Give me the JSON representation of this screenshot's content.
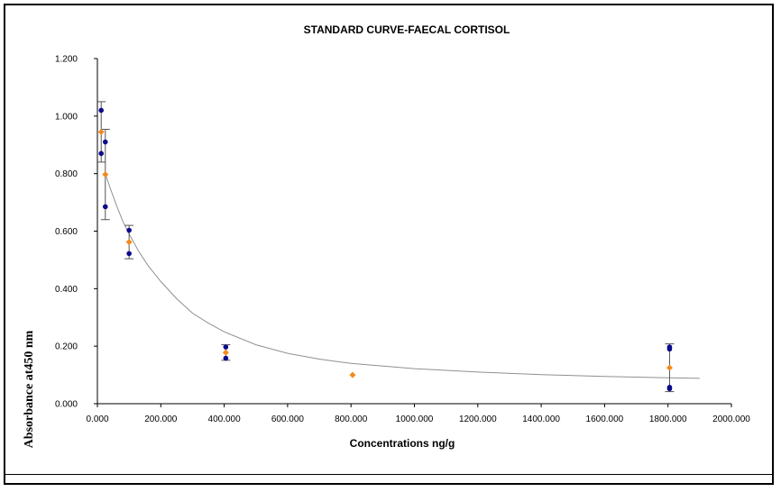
{
  "chart_data": {
    "type": "scatter",
    "title": "STANDARD CURVE-FAECAL CORTISOL",
    "xlabel": "Concentrations ng/g",
    "ylabel": "Absorbance at450 nm",
    "xlim": [
      0,
      2000
    ],
    "ylim": [
      0,
      1.2
    ],
    "x_ticks": [
      "0.000",
      "200.000",
      "400.000",
      "600.000",
      "800.000",
      "1000.000",
      "1200.000",
      "1400.000",
      "1600.000",
      "1800.000",
      "2000.000"
    ],
    "y_ticks": [
      "0.000",
      "0.200",
      "0.400",
      "0.600",
      "0.800",
      "1.000",
      "1.200"
    ],
    "colors": {
      "replicate": "#0a0a8c",
      "mean": "#f28a1c",
      "curve": "#909090",
      "errorbar": "#555555"
    },
    "replicates": [
      {
        "x": 12,
        "y": 1.02
      },
      {
        "x": 12,
        "y": 0.87
      },
      {
        "x": 25,
        "y": 0.91
      },
      {
        "x": 25,
        "y": 0.685
      },
      {
        "x": 100,
        "y": 0.603
      },
      {
        "x": 100,
        "y": 0.522
      },
      {
        "x": 405,
        "y": 0.197
      },
      {
        "x": 405,
        "y": 0.158
      },
      {
        "x": 1805,
        "y": 0.197
      },
      {
        "x": 1805,
        "y": 0.19
      },
      {
        "x": 1805,
        "y": 0.057
      },
      {
        "x": 1805,
        "y": 0.052
      }
    ],
    "means": [
      {
        "x": 12,
        "y": 0.945,
        "err": 0.105
      },
      {
        "x": 25,
        "y": 0.797,
        "err": 0.157
      },
      {
        "x": 100,
        "y": 0.562,
        "err": 0.058
      },
      {
        "x": 405,
        "y": 0.178,
        "err": 0.027
      },
      {
        "x": 805,
        "y": 0.1,
        "err": 0.0
      },
      {
        "x": 1805,
        "y": 0.125,
        "err": 0.083
      }
    ],
    "fit_curve": {
      "x": [
        25,
        40,
        60,
        80,
        100,
        130,
        160,
        200,
        250,
        300,
        350,
        400,
        500,
        600,
        700,
        800,
        1000,
        1200,
        1400,
        1600,
        1800,
        1900
      ],
      "y": [
        0.8,
        0.75,
        0.69,
        0.635,
        0.59,
        0.53,
        0.48,
        0.425,
        0.365,
        0.315,
        0.28,
        0.25,
        0.205,
        0.175,
        0.155,
        0.14,
        0.122,
        0.11,
        0.101,
        0.095,
        0.09,
        0.088
      ]
    }
  }
}
